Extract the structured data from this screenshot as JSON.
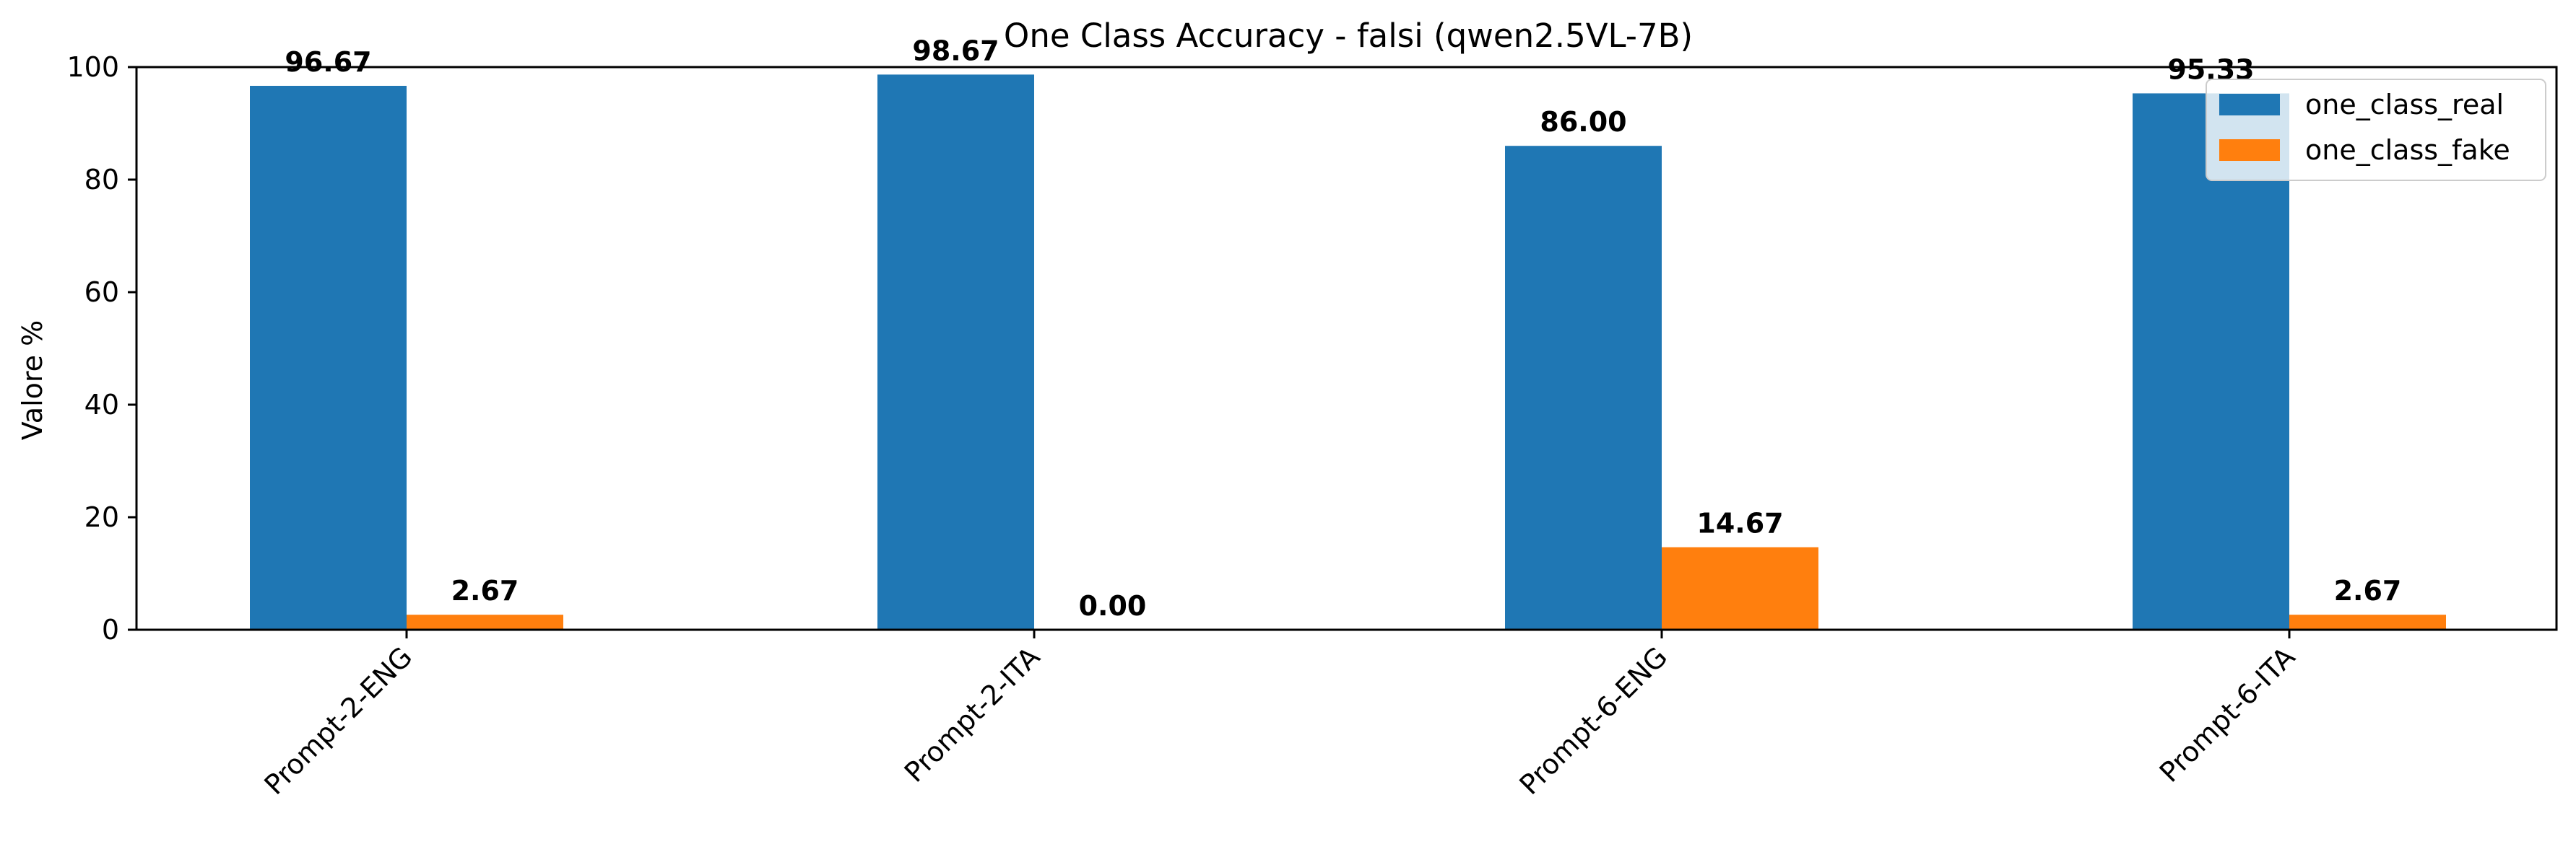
{
  "chart_data": {
    "type": "bar",
    "title": "One Class Accuracy - falsi (qwen2.5VL-7B)",
    "xlabel": "",
    "ylabel": "Valore %",
    "ylim": [
      0,
      100
    ],
    "yticks": [
      0,
      20,
      40,
      60,
      80,
      100
    ],
    "categories": [
      "Prompt-2-ENG",
      "Prompt-2-ITA",
      "Prompt-6-ENG",
      "Prompt-6-ITA"
    ],
    "series": [
      {
        "name": "one_class_real",
        "color": "#1f77b4",
        "values": [
          96.67,
          98.67,
          86.0,
          95.33
        ],
        "labels": [
          "96.67",
          "98.67",
          "86.00",
          "95.33"
        ]
      },
      {
        "name": "one_class_fake",
        "color": "#ff7f0e",
        "values": [
          2.67,
          0.0,
          14.67,
          2.67
        ],
        "labels": [
          "2.67",
          "0.00",
          "14.67",
          "2.67"
        ]
      }
    ],
    "legend": "top-right",
    "grid": false
  }
}
